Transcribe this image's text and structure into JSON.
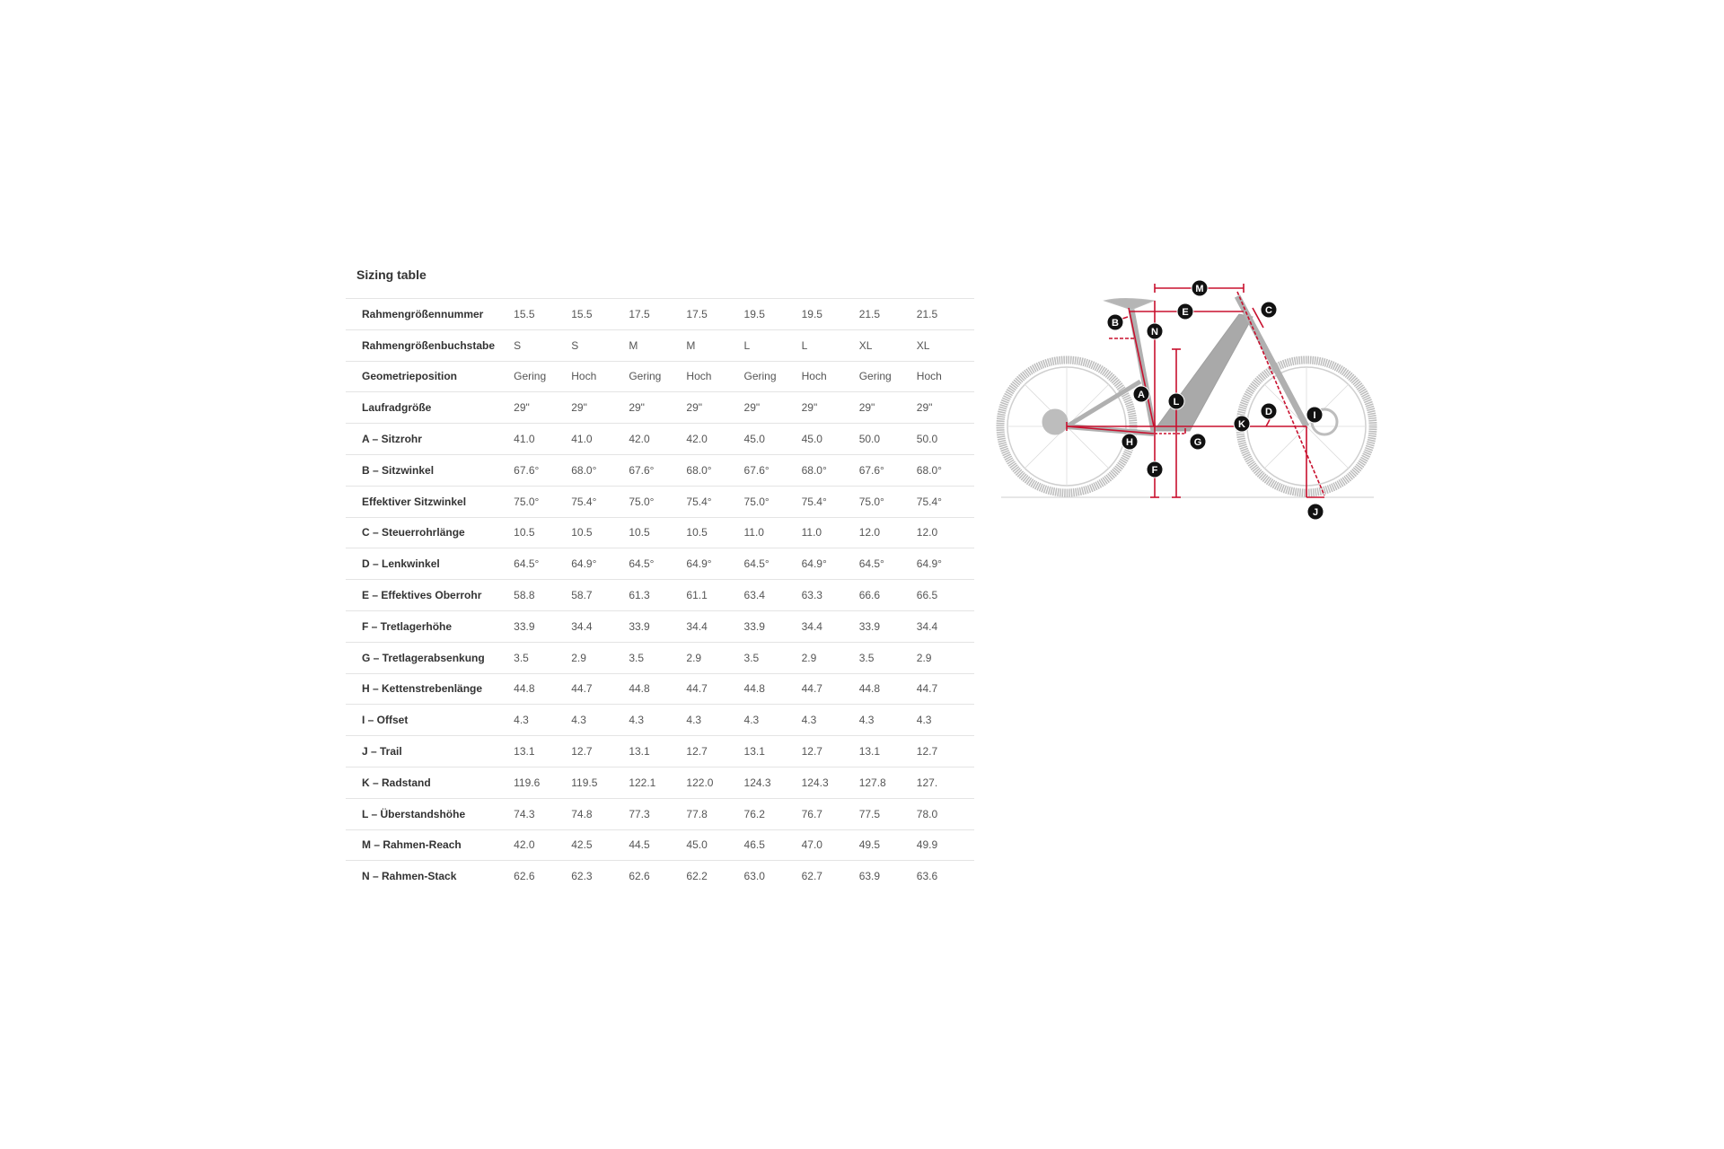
{
  "title": "Sizing table",
  "rows": [
    {
      "label": "Rahmengrößennummer",
      "values": [
        "15.5",
        "15.5",
        "17.5",
        "17.5",
        "19.5",
        "19.5",
        "21.5",
        "21.5"
      ]
    },
    {
      "label": "Rahmengrößenbuchstabe",
      "values": [
        "S",
        "S",
        "M",
        "M",
        "L",
        "L",
        "XL",
        "XL"
      ]
    },
    {
      "label": "Geometrieposition",
      "values": [
        "Gering",
        "Hoch",
        "Gering",
        "Hoch",
        "Gering",
        "Hoch",
        "Gering",
        "Hoch"
      ]
    },
    {
      "label": "Laufradgröße",
      "values": [
        "29\"",
        "29\"",
        "29\"",
        "29\"",
        "29\"",
        "29\"",
        "29\"",
        "29\""
      ]
    },
    {
      "label": "A – Sitzrohr",
      "values": [
        "41.0",
        "41.0",
        "42.0",
        "42.0",
        "45.0",
        "45.0",
        "50.0",
        "50.0"
      ]
    },
    {
      "label": "B – Sitzwinkel",
      "values": [
        "67.6°",
        "68.0°",
        "67.6°",
        "68.0°",
        "67.6°",
        "68.0°",
        "67.6°",
        "68.0°"
      ]
    },
    {
      "label": "Effektiver Sitzwinkel",
      "values": [
        "75.0°",
        "75.4°",
        "75.0°",
        "75.4°",
        "75.0°",
        "75.4°",
        "75.0°",
        "75.4°"
      ]
    },
    {
      "label": "C – Steuerrohrlänge",
      "values": [
        "10.5",
        "10.5",
        "10.5",
        "10.5",
        "11.0",
        "11.0",
        "12.0",
        "12.0"
      ]
    },
    {
      "label": "D – Lenkwinkel",
      "values": [
        "64.5°",
        "64.9°",
        "64.5°",
        "64.9°",
        "64.5°",
        "64.9°",
        "64.5°",
        "64.9°"
      ]
    },
    {
      "label": "E – Effektives Oberrohr",
      "values": [
        "58.8",
        "58.7",
        "61.3",
        "61.1",
        "63.4",
        "63.3",
        "66.6",
        "66.5"
      ]
    },
    {
      "label": "F – Tretlagerhöhe",
      "values": [
        "33.9",
        "34.4",
        "33.9",
        "34.4",
        "33.9",
        "34.4",
        "33.9",
        "34.4"
      ]
    },
    {
      "label": "G – Tretlagerabsenkung",
      "values": [
        "3.5",
        "2.9",
        "3.5",
        "2.9",
        "3.5",
        "2.9",
        "3.5",
        "2.9"
      ]
    },
    {
      "label": "H – Kettenstrebenlänge",
      "values": [
        "44.8",
        "44.7",
        "44.8",
        "44.7",
        "44.8",
        "44.7",
        "44.8",
        "44.7"
      ]
    },
    {
      "label": "I – Offset",
      "values": [
        "4.3",
        "4.3",
        "4.3",
        "4.3",
        "4.3",
        "4.3",
        "4.3",
        "4.3"
      ]
    },
    {
      "label": "J – Trail",
      "values": [
        "13.1",
        "12.7",
        "13.1",
        "12.7",
        "13.1",
        "12.7",
        "13.1",
        "12.7"
      ]
    },
    {
      "label": "K – Radstand",
      "values": [
        "119.6",
        "119.5",
        "122.1",
        "122.0",
        "124.3",
        "124.3",
        "127.8",
        "127."
      ]
    },
    {
      "label": "L – Überstandshöhe",
      "values": [
        "74.3",
        "74.8",
        "77.3",
        "77.8",
        "76.2",
        "76.7",
        "77.5",
        "78.0"
      ]
    },
    {
      "label": "M – Rahmen-Reach",
      "values": [
        "42.0",
        "42.5",
        "44.5",
        "45.0",
        "46.5",
        "47.0",
        "49.5",
        "49.9"
      ]
    },
    {
      "label": "N – Rahmen-Stack",
      "values": [
        "62.6",
        "62.3",
        "62.6",
        "62.2",
        "63.0",
        "62.7",
        "63.9",
        "63.6"
      ]
    }
  ],
  "diagram": {
    "markers": [
      "A",
      "B",
      "C",
      "D",
      "E",
      "F",
      "G",
      "H",
      "I",
      "J",
      "K",
      "L",
      "M",
      "N"
    ],
    "colors": {
      "measure": "#c8102e",
      "bike": "#b5b5b5",
      "marker": "#111111"
    }
  }
}
